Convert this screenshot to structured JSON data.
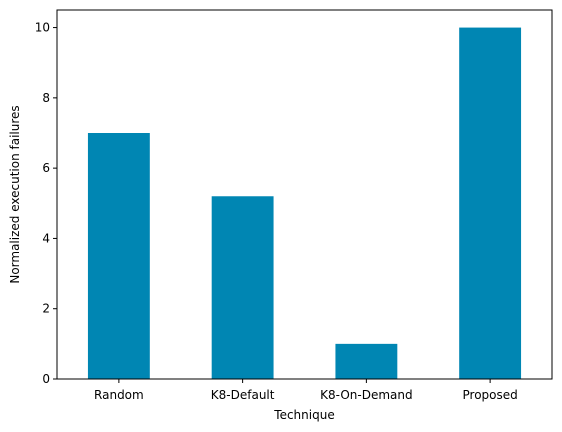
{
  "chart_data": {
    "type": "bar",
    "title": "",
    "xlabel": "Technique",
    "ylabel": "Normalized execution failures",
    "categories": [
      "Random",
      "K8-Default",
      "K8-On-Demand",
      "Proposed"
    ],
    "values": [
      7.0,
      5.2,
      1.0,
      10.0
    ],
    "ylim": [
      0,
      10.5
    ],
    "yticks": [
      0,
      2,
      4,
      6,
      8,
      10
    ],
    "ytick_labels": [
      "0",
      "2",
      "4",
      "6",
      "8",
      "10"
    ],
    "grid": false,
    "legend": "none",
    "bar_color": "#0086b3"
  }
}
